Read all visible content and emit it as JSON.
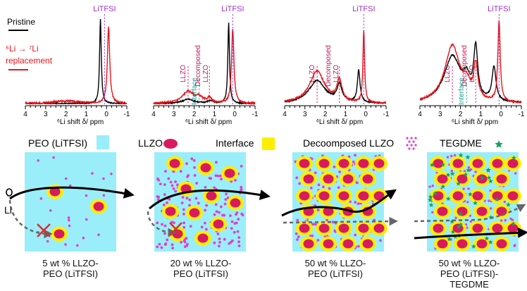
{
  "legend": {
    "pristine": "Pristine",
    "replacement_line1": "⁶Li → ⁷Li",
    "replacement_line2": "replacement",
    "colors": {
      "pristine": "#000000",
      "replacement": "#e8141b"
    }
  },
  "spectra": {
    "x_label": "⁶Li shift δ/ ppm",
    "x_ticks": [
      "4",
      "3",
      "2",
      "1",
      "0",
      "-1"
    ],
    "x_range": [
      4,
      -1
    ],
    "panels": [
      {
        "annotations": [
          {
            "text": "LiTFSI",
            "color": "#9b2fc9",
            "x": 0.1
          }
        ]
      },
      {
        "annotations": [
          {
            "text": "LLZO",
            "color": "#c2185b",
            "x": 2.3
          },
          {
            "text": "Interface",
            "color": "#1a9e8e",
            "x": 1.75
          },
          {
            "text": "Decomposed",
            "color": "#c2185b",
            "x": 1.25
          },
          {
            "text": "LLZO",
            "color": "#c2185b",
            "x": 1.25
          },
          {
            "text": "LiTFSI",
            "color": "#9b2fc9",
            "x": 0.1
          }
        ]
      },
      {
        "annotations": [
          {
            "text": "LLZO",
            "color": "#c2185b",
            "x": 2.4
          },
          {
            "text": "Decomposed",
            "color": "#c2185b",
            "x": 1.3
          },
          {
            "text": "LLZO",
            "color": "#c2185b",
            "x": 1.3
          },
          {
            "text": "LiTFSI",
            "color": "#9b2fc9",
            "x": 0.1
          }
        ]
      },
      {
        "annotations": [
          {
            "text": "LLZO",
            "color": "#c2185b",
            "x": 2.4
          },
          {
            "text": "Interface",
            "color": "#1a9e8e",
            "x": 1.7
          },
          {
            "text": "Decomposed",
            "color": "#c2185b",
            "x": 1.25
          },
          {
            "text": "LLZO",
            "color": "#c2185b",
            "x": 1.25
          },
          {
            "text": "LiTFSI",
            "color": "#9b2fc9",
            "x": 0.1
          }
        ]
      }
    ]
  },
  "schematic": {
    "peo_label": "PEO (LiTFSI)",
    "llzo_label": "LLZO",
    "interface_label": "Interface",
    "decomposed_label": "Decoomposed LLZO",
    "tegdme_label": "TEGDME",
    "li_label": "Li",
    "captions": [
      [
        "5 wt % LLZO-",
        "PEO (LiTFSI)"
      ],
      [
        "20 wt % LLZO-",
        "PEO (LiTFSI)"
      ],
      [
        "50 wt % LLZO-",
        "PEO (LiTFSI)"
      ],
      [
        "50 wt % LLZO-",
        "PEO (LiTFSI)-",
        "TEGDME"
      ]
    ],
    "colors": {
      "peo": "#9aeefa",
      "llzo": "#d81b60",
      "interface": "#ffee00",
      "decomposed": "#e040c8",
      "tegdme": "#1aa05a",
      "arrow_main": "#000000",
      "arrow_blocked": "#666666",
      "cross": "#d32f2f"
    }
  }
}
